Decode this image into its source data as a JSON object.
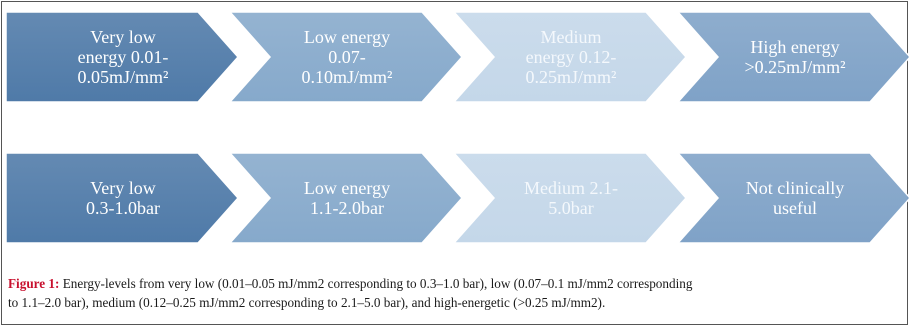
{
  "rows": [
    {
      "items": [
        {
          "lines": [
            "Very low",
            "energy 0.01-",
            "0.05mJ/mm²"
          ],
          "fill": "#4f7aa8",
          "text_color": "#ffffff"
        },
        {
          "lines": [
            "Low energy",
            "0.07-",
            "0.10mJ/mm²"
          ],
          "fill": "#86a9cb",
          "text_color": "#ffffff"
        },
        {
          "lines": [
            "Medium",
            "energy 0.12-",
            "0.25mJ/mm²"
          ],
          "fill": "#c4d7e9",
          "text_color": "#f4f8fc"
        },
        {
          "lines": [
            "High energy",
            ">0.25mJ/mm²"
          ],
          "fill": "#7fa2c7",
          "text_color": "#ffffff"
        }
      ]
    },
    {
      "items": [
        {
          "lines": [
            "Very low",
            "0.3-1.0bar"
          ],
          "fill": "#4f7aa8",
          "text_color": "#ffffff"
        },
        {
          "lines": [
            "Low energy",
            "1.1-2.0bar"
          ],
          "fill": "#86a9cb",
          "text_color": "#ffffff"
        },
        {
          "lines": [
            "Medium 2.1-",
            "5.0bar"
          ],
          "fill": "#c4d7e9",
          "text_color": "#f4f8fc"
        },
        {
          "lines": [
            "Not clinically",
            "useful"
          ],
          "fill": "#7fa2c7",
          "text_color": "#ffffff"
        }
      ]
    }
  ],
  "caption": {
    "label": "Figure 1:",
    "line1": " Energy-levels from very low (0.01–0.05 mJ/mm2 corresponding to 0.3–1.0 bar), low (0.07–0.1 mJ/mm2 corresponding",
    "line2": "to 1.1–2.0 bar), medium (0.12–0.25 mJ/mm2 corresponding to 2.1–5.0 bar), and high-energetic (>0.25 mJ/mm2)."
  },
  "colors": {
    "border": "#555555",
    "caption_label": "#c8102e"
  }
}
